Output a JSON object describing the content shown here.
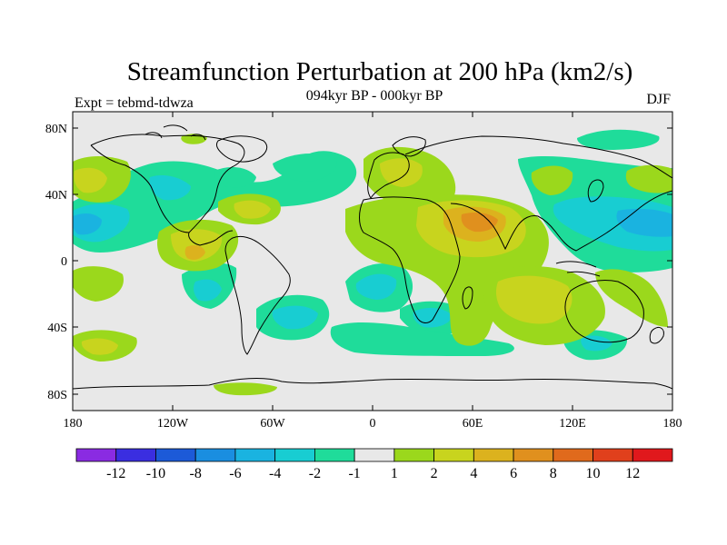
{
  "map": {
    "title": "Streamfunction Perturbation at 200 hPa (km2/s)",
    "left_subtitle": "Expt = tebmd-tdwza",
    "center_subtitle": "094kyr BP - 000kyr BP",
    "right_subtitle": "DJF",
    "lat_ticks": [
      "80N",
      "40N",
      "0",
      "40S",
      "80S"
    ],
    "lon_ticks": [
      "180",
      "120W",
      "60W",
      "0",
      "60E",
      "120E",
      "180"
    ],
    "lat_values": [
      80,
      40,
      0,
      -40,
      -80
    ],
    "lon_values": [
      -180,
      -120,
      -60,
      0,
      60,
      120,
      180
    ]
  },
  "colorbar": {
    "labels": [
      "-12",
      "-10",
      "-8",
      "-6",
      "-4",
      "-2",
      "-1",
      "1",
      "2",
      "4",
      "6",
      "8",
      "10",
      "12"
    ],
    "colors": [
      "#8a2be2",
      "#3a2ee0",
      "#1c5ad8",
      "#1a8ee0",
      "#1ab3e0",
      "#18cdd2",
      "#1fdc9a",
      "#e8e8e8",
      "#9bd81c",
      "#c8d41e",
      "#dcb21e",
      "#e0901e",
      "#e06a1c",
      "#e0401c",
      "#e0181c"
    ]
  },
  "colors": {
    "background": "#e8e8e8",
    "coast": "#000000",
    "neg1": "#1fdc9a",
    "neg2": "#18cdd2",
    "neg4": "#1ab3e0",
    "neg6": "#1a8ee0",
    "pos1": "#9bd81c",
    "pos2": "#c8d41e",
    "pos4": "#dcb21e",
    "pos6": "#e0901e"
  }
}
